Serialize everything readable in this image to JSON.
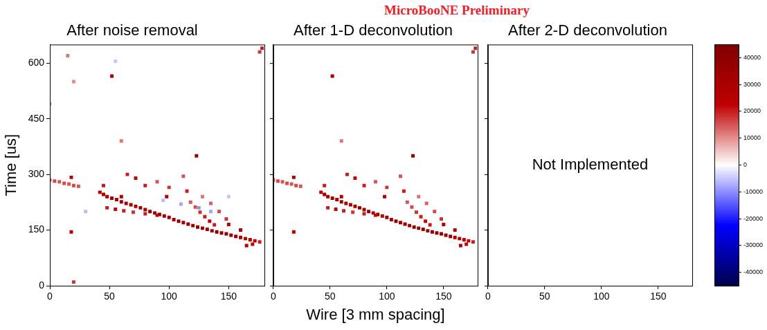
{
  "header": "MicroBooNE Preliminary",
  "colorbar": {
    "lim": [
      -45000,
      45000
    ],
    "ticks": [
      -40000,
      -30000,
      -20000,
      -10000,
      0,
      10000,
      20000,
      30000,
      40000
    ]
  },
  "chart_data": [
    {
      "type": "heatmap",
      "title": "After noise removal",
      "y_label": "Time [us]",
      "xlim": [
        0,
        180
      ],
      "xticks": [
        0,
        50,
        100,
        150
      ],
      "ylim": [
        0,
        650
      ],
      "yticks": [
        0,
        150,
        300,
        450,
        600
      ],
      "grid": false,
      "tick_labels": true,
      "cells": [
        [
          42,
          252,
          25000
        ],
        [
          45,
          246,
          30000
        ],
        [
          48,
          240,
          28000
        ],
        [
          52,
          236,
          32000
        ],
        [
          56,
          232,
          30000
        ],
        [
          60,
          226,
          35000
        ],
        [
          64,
          222,
          30000
        ],
        [
          68,
          218,
          33000
        ],
        [
          72,
          214,
          30000
        ],
        [
          76,
          210,
          36000
        ],
        [
          80,
          205,
          32000
        ],
        [
          84,
          200,
          38000
        ],
        [
          88,
          196,
          34000
        ],
        [
          92,
          192,
          36000
        ],
        [
          96,
          188,
          32000
        ],
        [
          100,
          184,
          35000
        ],
        [
          104,
          178,
          33000
        ],
        [
          108,
          174,
          38000
        ],
        [
          112,
          170,
          34000
        ],
        [
          116,
          166,
          36000
        ],
        [
          120,
          162,
          35000
        ],
        [
          124,
          158,
          38000
        ],
        [
          128,
          155,
          40000
        ],
        [
          132,
          152,
          36000
        ],
        [
          136,
          148,
          38000
        ],
        [
          140,
          145,
          40000
        ],
        [
          144,
          142,
          36000
        ],
        [
          148,
          140,
          38000
        ],
        [
          152,
          136,
          34000
        ],
        [
          156,
          133,
          36000
        ],
        [
          160,
          130,
          30000
        ],
        [
          164,
          127,
          28000
        ],
        [
          168,
          124,
          26000
        ],
        [
          172,
          121,
          24000
        ],
        [
          176,
          118,
          20000
        ],
        [
          48,
          210,
          20000
        ],
        [
          55,
          206,
          22000
        ],
        [
          62,
          202,
          20000
        ],
        [
          70,
          198,
          18000
        ],
        [
          80,
          194,
          20000
        ],
        [
          90,
          190,
          22000
        ],
        [
          118,
          225,
          15000
        ],
        [
          122,
          212,
          16000
        ],
        [
          126,
          198,
          18000
        ],
        [
          130,
          186,
          20000
        ],
        [
          134,
          174,
          22000
        ],
        [
          138,
          164,
          20000
        ],
        [
          128,
          240,
          12000
        ],
        [
          135,
          222,
          14000
        ],
        [
          142,
          200,
          16000
        ],
        [
          148,
          180,
          18000
        ],
        [
          0,
          285,
          15000
        ],
        [
          4,
          282,
          16000
        ],
        [
          8,
          280,
          15000
        ],
        [
          12,
          276,
          16000
        ],
        [
          16,
          274,
          15000
        ],
        [
          20,
          270,
          16000
        ],
        [
          24,
          268,
          15000
        ],
        [
          18,
          292,
          25000
        ],
        [
          18,
          145,
          25000
        ],
        [
          20,
          10,
          18000
        ],
        [
          52,
          565,
          30000
        ],
        [
          123,
          350,
          35000
        ],
        [
          178,
          640,
          20000
        ],
        [
          176,
          630,
          18000
        ],
        [
          60,
          390,
          12000
        ],
        [
          65,
          300,
          20000
        ],
        [
          72,
          290,
          22000
        ],
        [
          80,
          270,
          20000
        ],
        [
          90,
          280,
          15000
        ],
        [
          100,
          265,
          18000
        ],
        [
          112,
          295,
          15000
        ],
        [
          115,
          255,
          20000
        ],
        [
          150,
          165,
          25000
        ],
        [
          160,
          150,
          30000
        ],
        [
          165,
          108,
          25000
        ],
        [
          170,
          112,
          22000
        ],
        [
          98,
          240,
          25000
        ],
        [
          60,
          240,
          28000
        ],
        [
          45,
          270,
          20000
        ],
        [
          15,
          620,
          12000
        ],
        [
          20,
          550,
          10000
        ],
        [
          0,
          490,
          10000
        ],
        [
          30,
          200,
          -6000
        ],
        [
          110,
          220,
          -8000
        ],
        [
          125,
          210,
          -10000
        ],
        [
          135,
          200,
          -8000
        ],
        [
          55,
          605,
          -5000
        ],
        [
          95,
          230,
          -6000
        ],
        [
          150,
          240,
          -5000
        ]
      ]
    },
    {
      "type": "heatmap",
      "title": "After 1-D deconvolution",
      "x_label": "Wire [3 mm spacing]",
      "xlim": [
        0,
        180
      ],
      "xticks": [
        0,
        50,
        100,
        150
      ],
      "ylim": [
        0,
        650
      ],
      "yticks": [
        0,
        150,
        300,
        450,
        600
      ],
      "grid": false,
      "tick_labels": "x",
      "cells": [
        [
          42,
          252,
          25000
        ],
        [
          45,
          246,
          30000
        ],
        [
          48,
          240,
          28000
        ],
        [
          52,
          236,
          32000
        ],
        [
          56,
          232,
          30000
        ],
        [
          60,
          226,
          35000
        ],
        [
          64,
          222,
          30000
        ],
        [
          68,
          218,
          33000
        ],
        [
          72,
          214,
          30000
        ],
        [
          76,
          210,
          36000
        ],
        [
          80,
          205,
          32000
        ],
        [
          84,
          200,
          38000
        ],
        [
          88,
          196,
          34000
        ],
        [
          92,
          192,
          36000
        ],
        [
          96,
          188,
          32000
        ],
        [
          100,
          184,
          35000
        ],
        [
          104,
          178,
          33000
        ],
        [
          108,
          174,
          38000
        ],
        [
          112,
          170,
          34000
        ],
        [
          116,
          166,
          36000
        ],
        [
          120,
          162,
          35000
        ],
        [
          124,
          158,
          38000
        ],
        [
          128,
          155,
          40000
        ],
        [
          132,
          152,
          36000
        ],
        [
          136,
          148,
          38000
        ],
        [
          140,
          145,
          40000
        ],
        [
          144,
          142,
          36000
        ],
        [
          148,
          140,
          38000
        ],
        [
          152,
          136,
          34000
        ],
        [
          156,
          133,
          36000
        ],
        [
          160,
          130,
          30000
        ],
        [
          164,
          127,
          28000
        ],
        [
          168,
          124,
          26000
        ],
        [
          172,
          121,
          24000
        ],
        [
          176,
          118,
          20000
        ],
        [
          48,
          210,
          20000
        ],
        [
          55,
          206,
          22000
        ],
        [
          62,
          202,
          20000
        ],
        [
          70,
          198,
          18000
        ],
        [
          80,
          194,
          20000
        ],
        [
          90,
          190,
          22000
        ],
        [
          118,
          225,
          15000
        ],
        [
          122,
          212,
          16000
        ],
        [
          126,
          198,
          18000
        ],
        [
          130,
          186,
          20000
        ],
        [
          134,
          174,
          22000
        ],
        [
          138,
          164,
          20000
        ],
        [
          128,
          240,
          12000
        ],
        [
          135,
          222,
          14000
        ],
        [
          142,
          200,
          16000
        ],
        [
          148,
          180,
          18000
        ],
        [
          0,
          285,
          15000
        ],
        [
          4,
          282,
          16000
        ],
        [
          8,
          280,
          15000
        ],
        [
          12,
          276,
          16000
        ],
        [
          16,
          274,
          15000
        ],
        [
          20,
          270,
          16000
        ],
        [
          24,
          268,
          15000
        ],
        [
          18,
          292,
          25000
        ],
        [
          18,
          145,
          25000
        ],
        [
          52,
          565,
          30000
        ],
        [
          123,
          350,
          35000
        ],
        [
          178,
          640,
          20000
        ],
        [
          176,
          630,
          18000
        ],
        [
          60,
          390,
          12000
        ],
        [
          65,
          300,
          20000
        ],
        [
          72,
          290,
          22000
        ],
        [
          80,
          270,
          20000
        ],
        [
          90,
          280,
          15000
        ],
        [
          100,
          265,
          18000
        ],
        [
          112,
          295,
          15000
        ],
        [
          115,
          255,
          20000
        ],
        [
          150,
          165,
          25000
        ],
        [
          160,
          150,
          30000
        ],
        [
          165,
          108,
          25000
        ],
        [
          170,
          112,
          22000
        ],
        [
          98,
          240,
          25000
        ],
        [
          60,
          240,
          28000
        ],
        [
          45,
          270,
          20000
        ]
      ]
    },
    {
      "type": "heatmap",
      "title": "After 2-D deconvolution",
      "xlim": [
        0,
        180
      ],
      "xticks": [
        0,
        50,
        100,
        150
      ],
      "ylim": [
        0,
        650
      ],
      "yticks": [
        0,
        150,
        300,
        450,
        600
      ],
      "grid": false,
      "tick_labels": "x",
      "cells": [],
      "annotations": [
        {
          "text": "Not Implemented",
          "x": 90,
          "y": 325
        }
      ]
    }
  ]
}
